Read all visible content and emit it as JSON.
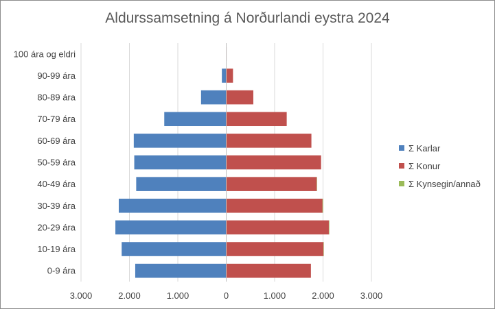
{
  "chart_data": {
    "type": "bar",
    "orientation": "horizontal",
    "stacked": true,
    "title": "Aldurssamsetning á Norðurlandi eystra 2024",
    "categories": [
      "0-9 ára",
      "10-19 ára",
      "20-29 ára",
      "30-39 ára",
      "40-49 ára",
      "50-59 ára",
      "60-69 ára",
      "70-79 ára",
      "80-89 ára",
      "90-99 ára",
      "100 ára og eldri"
    ],
    "series": [
      {
        "name": "Σ Karlar",
        "color": "#4f81bd",
        "values": [
          -1880,
          -2160,
          -2290,
          -2220,
          -1860,
          -1900,
          -1910,
          -1280,
          -520,
          -90,
          -5
        ]
      },
      {
        "name": "Σ Konur",
        "color": "#c0504d",
        "values": [
          1750,
          2010,
          2120,
          1990,
          1870,
          1960,
          1760,
          1250,
          560,
          140,
          8
        ]
      },
      {
        "name": "Σ Kynsegin/annað",
        "color": "#9bbb59",
        "values": [
          0,
          3,
          10,
          12,
          2,
          0,
          0,
          0,
          0,
          0,
          0
        ]
      }
    ],
    "xlim": [
      -3000,
      3000
    ],
    "xticks": [
      -3000,
      -2000,
      -1000,
      0,
      1000,
      2000,
      3000
    ],
    "xtick_labels": [
      "3.000",
      "2.000",
      "1.000",
      "0",
      "1.000",
      "2.000",
      "3.000"
    ],
    "grid": "vertical",
    "legend_position": "right"
  }
}
